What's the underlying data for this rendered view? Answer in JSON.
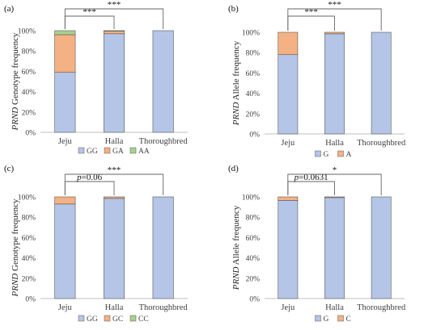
{
  "colors": {
    "bottom": "#b4c5e7",
    "middle": "#f4b183",
    "top": "#a9d18e",
    "axis": "#bfbfbf",
    "bracket": "#666666"
  },
  "chart_data": [
    {
      "type": "bar",
      "panel": "(a)",
      "ylabel_italic": "PRND",
      "ylabel_rest": " Genotype frequency",
      "categories": [
        "Jeju",
        "Halla",
        "Thoroughbred"
      ],
      "ticks": [
        "0%",
        "20%",
        "40%",
        "60%",
        "80%",
        "100%"
      ],
      "ylim": [
        0,
        100
      ],
      "stacked": true,
      "series": [
        {
          "name": "GG",
          "color_key": "bottom",
          "values": [
            59,
            97,
            100
          ]
        },
        {
          "name": "GA",
          "color_key": "middle",
          "values": [
            37,
            2.5,
            0
          ]
        },
        {
          "name": "AA",
          "color_key": "top",
          "values": [
            4,
            0.5,
            0
          ]
        }
      ],
      "comparisons": [
        {
          "from": 0,
          "to": 1,
          "label_italic": "",
          "label": "***"
        },
        {
          "from": 0,
          "to": 2,
          "label_italic": "",
          "label": "***"
        }
      ],
      "legend": "bottom"
    },
    {
      "type": "bar",
      "panel": "(b)",
      "ylabel_italic": "PRND",
      "ylabel_rest": " Allele frequency",
      "categories": [
        "Jeju",
        "Halla",
        "Thoroughbred"
      ],
      "ticks": [
        "0%",
        "20%",
        "40%",
        "60%",
        "80%",
        "100%"
      ],
      "ylim": [
        0,
        100
      ],
      "stacked": true,
      "series": [
        {
          "name": "G",
          "color_key": "bottom",
          "values": [
            78,
            98.5,
            100
          ]
        },
        {
          "name": "A",
          "color_key": "middle",
          "values": [
            22,
            1.5,
            0
          ]
        }
      ],
      "comparisons": [
        {
          "from": 0,
          "to": 1,
          "label_italic": "",
          "label": "***"
        },
        {
          "from": 0,
          "to": 2,
          "label_italic": "",
          "label": "***"
        }
      ],
      "legend": "bottom"
    },
    {
      "type": "bar",
      "panel": "(c)",
      "ylabel_italic": "PRND",
      "ylabel_rest": " Genotype frequency",
      "categories": [
        "Jeju",
        "Halla",
        "Thoroughbred"
      ],
      "ticks": [
        "0%",
        "20%",
        "40%",
        "60%",
        "80%",
        "100%"
      ],
      "ylim": [
        0,
        100
      ],
      "stacked": true,
      "series": [
        {
          "name": "GG",
          "color_key": "bottom",
          "values": [
            93,
            98.5,
            100
          ]
        },
        {
          "name": "GC",
          "color_key": "middle",
          "values": [
            7,
            1.5,
            0
          ]
        },
        {
          "name": "CC",
          "color_key": "top",
          "values": [
            0,
            0,
            0
          ]
        }
      ],
      "comparisons": [
        {
          "from": 0,
          "to": 1,
          "label_italic": "p",
          "label": "=0.06"
        },
        {
          "from": 0,
          "to": 2,
          "label_italic": "",
          "label": "***"
        }
      ],
      "legend": "bottom"
    },
    {
      "type": "bar",
      "panel": "(d)",
      "ylabel_italic": "PRND",
      "ylabel_rest": " Allele frequency",
      "categories": [
        "Jeju",
        "Halla",
        "Thoroughbred"
      ],
      "ticks": [
        "0%",
        "20%",
        "40%",
        "60%",
        "80%",
        "100%"
      ],
      "ylim": [
        0,
        100
      ],
      "stacked": true,
      "series": [
        {
          "name": "G",
          "color_key": "bottom",
          "values": [
            96.5,
            99.3,
            100
          ]
        },
        {
          "name": "C",
          "color_key": "middle",
          "values": [
            3.5,
            0.7,
            0
          ]
        }
      ],
      "comparisons": [
        {
          "from": 0,
          "to": 1,
          "label_italic": "p",
          "label": "=0.0631"
        },
        {
          "from": 0,
          "to": 2,
          "label_italic": "",
          "label": "*"
        }
      ],
      "legend": "bottom"
    }
  ]
}
